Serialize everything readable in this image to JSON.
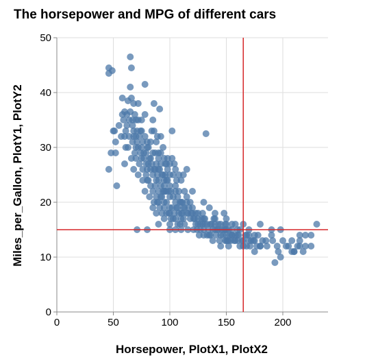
{
  "chart_data": {
    "type": "scatter",
    "title": "The horsepower and MPG of different cars",
    "xlabel": "Horsepower, PlotX1, PlotX2",
    "ylabel": "Miles_per_Gallon, PlotY1, PlotY2",
    "xlim": [
      0,
      240
    ],
    "ylim": [
      0,
      50
    ],
    "x_ticks": [
      0,
      50,
      100,
      150,
      200
    ],
    "y_ticks": [
      0,
      10,
      20,
      30,
      40,
      50
    ],
    "grid": true,
    "point_color": "#4c78a8",
    "rule_color": "#d62728",
    "reference_lines": {
      "x": 165,
      "y": 15
    },
    "points": [
      [
        46,
        26
      ],
      [
        46,
        44.5
      ],
      [
        46,
        43.5
      ],
      [
        48,
        29
      ],
      [
        49,
        44
      ],
      [
        50,
        33
      ],
      [
        51,
        33
      ],
      [
        52,
        29
      ],
      [
        52,
        31
      ],
      [
        53,
        23
      ],
      [
        58,
        36
      ],
      [
        58,
        39
      ],
      [
        60,
        27
      ],
      [
        60,
        32
      ],
      [
        60,
        36.5
      ],
      [
        61,
        33
      ],
      [
        62,
        36
      ],
      [
        63,
        38.5
      ],
      [
        64,
        35
      ],
      [
        65,
        46.5
      ],
      [
        65,
        41
      ],
      [
        66,
        44.5
      ],
      [
        66,
        39
      ],
      [
        67,
        35
      ],
      [
        67,
        31
      ],
      [
        68,
        33
      ],
      [
        68,
        38
      ],
      [
        69,
        29
      ],
      [
        70,
        32
      ],
      [
        70,
        30
      ],
      [
        71,
        31
      ],
      [
        72,
        25
      ],
      [
        72,
        35
      ],
      [
        73,
        27
      ],
      [
        74,
        29
      ],
      [
        75,
        33
      ],
      [
        76,
        26
      ],
      [
        76,
        31
      ],
      [
        77,
        29
      ],
      [
        78,
        36
      ],
      [
        78,
        41.5
      ],
      [
        79,
        27
      ],
      [
        80,
        31
      ],
      [
        80,
        24
      ],
      [
        81,
        30
      ],
      [
        82,
        21
      ],
      [
        83,
        31
      ],
      [
        83,
        28
      ],
      [
        84,
        33
      ],
      [
        85,
        35
      ],
      [
        86,
        26
      ],
      [
        86,
        33
      ],
      [
        86,
        38
      ],
      [
        87,
        29
      ],
      [
        88,
        27
      ],
      [
        88,
        31
      ],
      [
        88,
        21
      ],
      [
        88,
        18
      ],
      [
        89,
        32
      ],
      [
        90,
        24
      ],
      [
        90,
        26
      ],
      [
        90,
        20
      ],
      [
        90,
        28
      ],
      [
        91,
        37
      ],
      [
        92,
        23
      ],
      [
        92,
        32
      ],
      [
        92,
        29
      ],
      [
        93,
        21
      ],
      [
        94,
        25
      ],
      [
        95,
        22
      ],
      [
        95,
        24
      ],
      [
        95,
        28
      ],
      [
        95,
        19
      ],
      [
        96,
        25
      ],
      [
        97,
        18
      ],
      [
        97,
        22
      ],
      [
        97,
        27
      ],
      [
        98,
        28
      ],
      [
        100,
        23
      ],
      [
        100,
        18
      ],
      [
        100,
        25
      ],
      [
        100,
        16
      ],
      [
        102,
        33
      ],
      [
        103,
        25
      ],
      [
        105,
        20
      ],
      [
        105,
        22
      ],
      [
        105,
        26
      ],
      [
        106,
        19
      ],
      [
        108,
        22
      ],
      [
        110,
        18
      ],
      [
        110,
        17
      ],
      [
        110,
        20
      ],
      [
        110,
        24
      ],
      [
        112,
        19
      ],
      [
        112,
        25
      ],
      [
        113,
        22
      ],
      [
        115,
        20
      ],
      [
        115,
        26
      ],
      [
        116,
        18
      ],
      [
        120,
        19
      ],
      [
        120,
        22
      ],
      [
        122,
        17
      ],
      [
        125,
        18
      ],
      [
        129,
        16
      ],
      [
        130,
        15
      ],
      [
        130,
        17
      ],
      [
        130,
        20
      ],
      [
        132,
        32.5
      ],
      [
        133,
        14
      ],
      [
        135,
        19
      ],
      [
        137,
        16
      ],
      [
        139,
        17
      ],
      [
        140,
        15
      ],
      [
        140,
        17
      ],
      [
        142,
        15
      ],
      [
        145,
        14
      ],
      [
        145,
        16
      ],
      [
        148,
        15
      ],
      [
        149,
        15
      ],
      [
        150,
        13
      ],
      [
        150,
        14
      ],
      [
        150,
        15
      ],
      [
        150,
        16
      ],
      [
        152,
        13
      ],
      [
        153,
        14
      ],
      [
        155,
        14
      ],
      [
        155,
        16
      ],
      [
        158,
        14
      ],
      [
        160,
        14
      ],
      [
        160,
        15
      ],
      [
        165,
        13
      ],
      [
        165,
        16
      ],
      [
        167,
        14
      ],
      [
        170,
        13
      ],
      [
        170,
        14
      ],
      [
        175,
        14
      ],
      [
        175,
        13
      ],
      [
        180,
        12
      ],
      [
        180,
        16
      ],
      [
        190,
        14
      ],
      [
        193,
        9
      ],
      [
        198,
        10
      ],
      [
        198,
        15
      ],
      [
        208,
        11
      ],
      [
        210,
        11
      ],
      [
        215,
        14
      ],
      [
        215,
        12
      ],
      [
        220,
        14
      ],
      [
        225,
        12
      ],
      [
        225,
        14
      ],
      [
        230,
        16
      ],
      [
        65,
        36.5
      ],
      [
        68,
        32
      ],
      [
        70,
        35
      ],
      [
        72,
        38
      ],
      [
        75,
        28
      ],
      [
        75,
        35
      ],
      [
        78,
        32
      ],
      [
        80,
        26
      ],
      [
        80,
        30
      ],
      [
        82,
        28
      ],
      [
        84,
        27
      ],
      [
        85,
        25
      ],
      [
        88,
        24
      ],
      [
        90,
        22
      ],
      [
        92,
        21
      ],
      [
        94,
        22
      ],
      [
        95,
        20
      ],
      [
        96,
        22
      ],
      [
        98,
        24
      ],
      [
        100,
        21
      ],
      [
        100,
        19
      ],
      [
        102,
        19
      ],
      [
        104,
        18
      ],
      [
        105,
        17
      ],
      [
        107,
        16
      ],
      [
        108,
        18
      ],
      [
        110,
        15
      ],
      [
        112,
        17
      ],
      [
        115,
        21
      ],
      [
        118,
        20
      ],
      [
        120,
        18
      ],
      [
        123,
        16
      ],
      [
        125,
        16
      ],
      [
        127,
        15
      ],
      [
        130,
        14
      ],
      [
        135,
        14
      ],
      [
        140,
        18
      ],
      [
        143,
        16
      ],
      [
        145,
        12
      ],
      [
        148,
        18
      ],
      [
        150,
        17
      ],
      [
        152,
        12
      ],
      [
        155,
        15
      ],
      [
        158,
        13
      ],
      [
        160,
        13
      ],
      [
        162,
        12
      ],
      [
        165,
        12
      ],
      [
        168,
        14
      ],
      [
        170,
        15
      ],
      [
        172,
        13
      ],
      [
        175,
        11
      ],
      [
        178,
        14
      ],
      [
        180,
        12
      ],
      [
        185,
        13
      ],
      [
        190,
        15
      ],
      [
        195,
        12
      ],
      [
        200,
        13
      ],
      [
        205,
        12
      ],
      [
        210,
        11
      ],
      [
        215,
        13
      ],
      [
        220,
        12
      ],
      [
        63,
        30
      ],
      [
        66,
        28
      ],
      [
        68,
        26
      ],
      [
        70,
        28
      ],
      [
        72,
        30
      ],
      [
        74,
        33
      ],
      [
        76,
        24
      ],
      [
        78,
        22
      ],
      [
        79,
        25
      ],
      [
        81,
        24
      ],
      [
        83,
        23
      ],
      [
        85,
        22
      ],
      [
        86,
        20
      ],
      [
        87,
        23
      ],
      [
        89,
        20
      ],
      [
        91,
        19
      ],
      [
        93,
        18
      ],
      [
        95,
        17
      ],
      [
        97,
        20
      ],
      [
        99,
        18
      ],
      [
        101,
        17
      ],
      [
        103,
        17
      ],
      [
        105,
        15
      ],
      [
        107,
        19
      ],
      [
        109,
        16
      ],
      [
        111,
        18
      ],
      [
        113,
        16
      ],
      [
        116,
        15
      ],
      [
        118,
        17
      ],
      [
        121,
        15
      ],
      [
        124,
        15
      ],
      [
        126,
        14
      ],
      [
        128,
        17
      ],
      [
        131,
        16
      ],
      [
        134,
        15
      ],
      [
        136,
        14
      ],
      [
        138,
        13
      ],
      [
        141,
        14
      ],
      [
        144,
        13
      ],
      [
        147,
        14
      ],
      [
        149,
        13
      ],
      [
        151,
        13
      ],
      [
        154,
        13
      ],
      [
        157,
        13
      ],
      [
        161,
        14
      ],
      [
        164,
        13
      ],
      [
        168,
        12
      ],
      [
        171,
        12
      ],
      [
        174,
        13
      ],
      [
        177,
        12
      ],
      [
        182,
        13
      ],
      [
        186,
        12
      ],
      [
        191,
        13
      ],
      [
        196,
        11
      ],
      [
        203,
        12
      ],
      [
        208,
        13
      ],
      [
        213,
        12
      ],
      [
        218,
        11
      ],
      [
        55,
        34
      ],
      [
        57,
        32
      ],
      [
        59,
        35
      ],
      [
        61,
        30
      ],
      [
        62,
        34
      ],
      [
        64,
        32
      ],
      [
        67,
        34
      ],
      [
        69,
        36
      ],
      [
        71,
        33
      ],
      [
        73,
        32
      ],
      [
        75,
        30
      ],
      [
        77,
        28
      ],
      [
        79,
        29
      ],
      [
        81,
        27
      ],
      [
        83,
        26
      ],
      [
        85,
        29
      ],
      [
        87,
        26
      ],
      [
        89,
        25
      ],
      [
        91,
        26
      ],
      [
        93,
        25
      ],
      [
        95,
        23
      ],
      [
        97,
        24
      ],
      [
        99,
        22
      ],
      [
        101,
        22
      ],
      [
        103,
        21
      ],
      [
        105,
        23
      ],
      [
        107,
        21
      ],
      [
        109,
        20
      ],
      [
        111,
        20
      ],
      [
        113,
        19
      ],
      [
        115,
        18
      ],
      [
        117,
        19
      ],
      [
        119,
        18
      ],
      [
        121,
        17
      ],
      [
        123,
        18
      ],
      [
        125,
        17
      ],
      [
        127,
        16
      ],
      [
        129,
        18
      ],
      [
        131,
        17
      ],
      [
        133,
        16
      ],
      [
        136,
        16
      ],
      [
        138,
        15
      ],
      [
        140,
        16
      ],
      [
        143,
        15
      ],
      [
        146,
        15
      ],
      [
        149,
        16
      ],
      [
        152,
        15
      ],
      [
        155,
        14
      ],
      [
        158,
        16
      ],
      [
        162,
        15
      ],
      [
        90,
        29
      ],
      [
        92,
        27
      ],
      [
        94,
        30
      ],
      [
        96,
        27
      ],
      [
        98,
        26
      ],
      [
        100,
        27
      ],
      [
        102,
        28
      ],
      [
        104,
        27
      ],
      [
        106,
        24
      ],
      [
        108,
        25
      ],
      [
        71,
        15
      ],
      [
        80,
        15
      ],
      [
        85,
        19
      ],
      [
        90,
        16
      ],
      [
        100,
        15
      ]
    ]
  }
}
